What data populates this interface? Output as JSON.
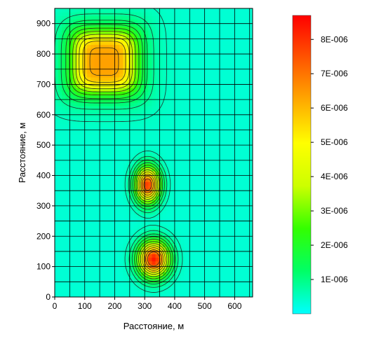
{
  "chart_data": {
    "type": "heatmap",
    "title": "",
    "xlabel": "Расстояние, м",
    "ylabel": "Расстояние, м",
    "xlim": [
      0,
      660
    ],
    "ylim": [
      0,
      950
    ],
    "x_ticks": [
      0,
      100,
      200,
      300,
      400,
      500,
      600
    ],
    "y_ticks": [
      0,
      100,
      200,
      300,
      400,
      500,
      600,
      700,
      800,
      900
    ],
    "grid": true,
    "contours": true,
    "colorbar": {
      "min": 0,
      "max": 8.7e-06,
      "ticks": [
        1e-06,
        2e-06,
        3e-06,
        4e-06,
        5e-06,
        6e-06,
        7e-06,
        8e-06
      ],
      "tick_labels": [
        "1E-006",
        "2E-006",
        "3E-006",
        "4E-006",
        "5E-006",
        "6E-006",
        "7E-006",
        "8E-006"
      ],
      "colors": [
        "#00ffff",
        "#00ff66",
        "#33ff00",
        "#ccff00",
        "#ffff00",
        "#ffaa00",
        "#ff5500",
        "#ff0000"
      ]
    },
    "sources": [
      {
        "x": 165,
        "y": 775,
        "peak": 6e-06,
        "spread_x": 100,
        "spread_y": 95,
        "shape": "plateau"
      },
      {
        "x": 310,
        "y": 370,
        "peak": 7.5e-06,
        "spread_x": 38,
        "spread_y": 55,
        "shape": "peak"
      },
      {
        "x": 330,
        "y": 125,
        "peak": 8e-06,
        "spread_x": 48,
        "spread_y": 55,
        "shape": "peak"
      }
    ]
  }
}
